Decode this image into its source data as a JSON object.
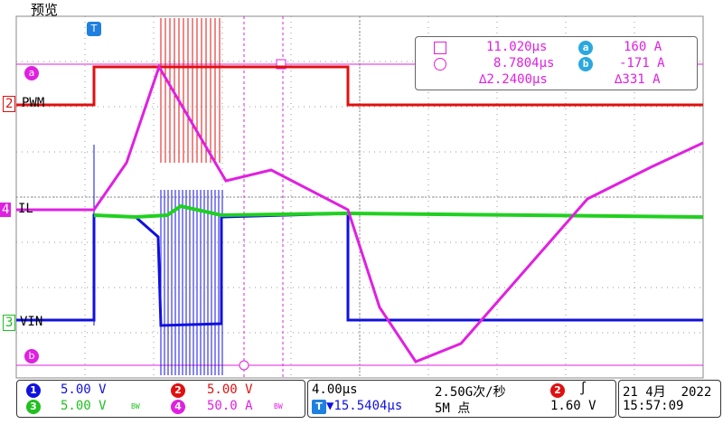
{
  "window": {
    "title": "预览"
  },
  "channels": {
    "pwm": {
      "label": "PWM",
      "num": "2",
      "color": "#e01010"
    },
    "il": {
      "label": "IL",
      "num": "4",
      "color": "#e020e0"
    },
    "vin": {
      "label": "VIN",
      "num": "3",
      "color": "#20d020"
    }
  },
  "markers": {
    "trigger": "T",
    "ref_a": "a",
    "ref_b": "b"
  },
  "measurement": {
    "cursor1_time": "11.020µs",
    "cursor2_time": "8.7804µs",
    "delta_time": "∆2.2400µs",
    "a_label": "a",
    "a_value": "160 A",
    "b_label": "b",
    "b_value": "-171 A",
    "delta_value": "∆331 A"
  },
  "status": {
    "ch1": {
      "num": "1",
      "scale": "5.00 V",
      "color": "#1010e0"
    },
    "ch2": {
      "num": "2",
      "scale": "5.00 V",
      "color": "#e01010"
    },
    "ch3": {
      "num": "3",
      "scale": "5.00 V",
      "color": "#20c020"
    },
    "ch4": {
      "num": "4",
      "scale": "50.0 A",
      "color": "#e020e0"
    },
    "bw": "BW",
    "timebase": "4.00µs",
    "sample_rate": "2.50G次/秒",
    "position": "▼15.5404µs",
    "record_length": "5M 点",
    "trig_source": "2",
    "trig_level": "1.60 V",
    "date": "21 4月  2022",
    "time": "15:57:09"
  }
}
